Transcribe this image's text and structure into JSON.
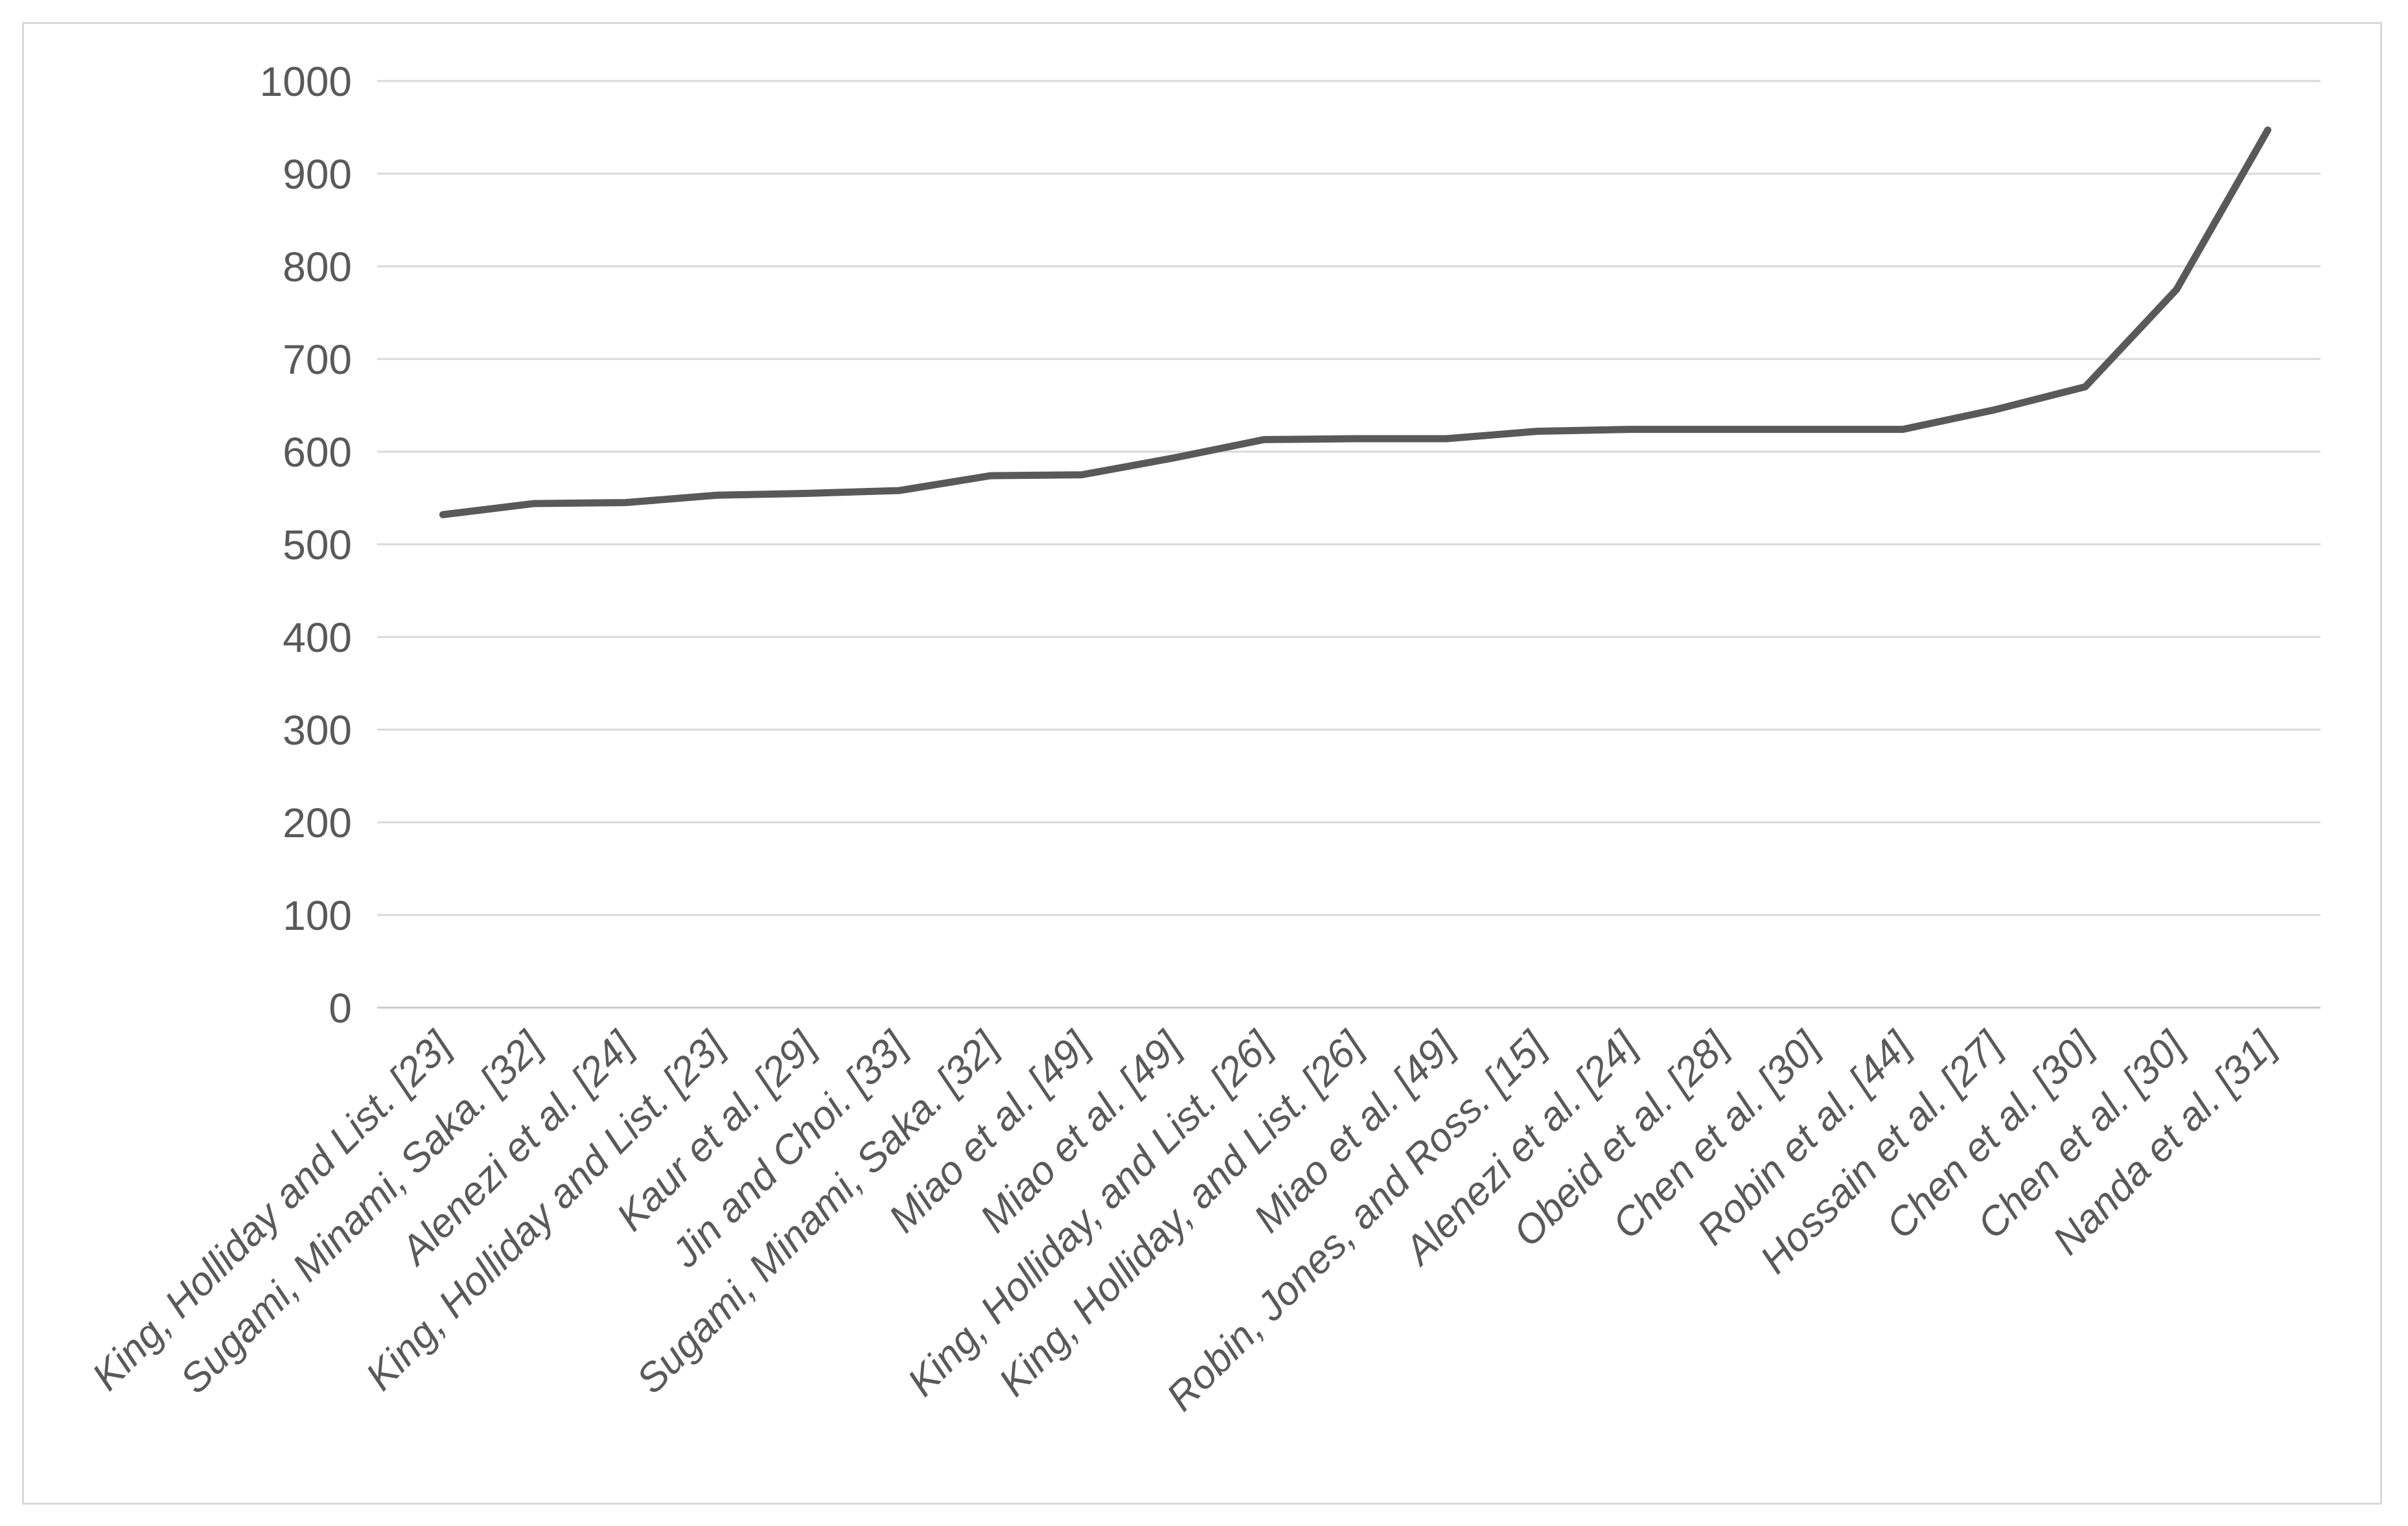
{
  "window": {
    "background": "#ffffff",
    "frame_border_color": "#d9d9d9"
  },
  "chart_data": {
    "type": "line",
    "title": "",
    "xlabel": "",
    "ylabel": "",
    "categories": [
      "King, Holliday and List. [23]",
      "Sugami, Minami, Saka. [32]",
      "Alenezi et al. [24]",
      "King, Holliday and List. [23]",
      "Kaur et al. [29]",
      "Jin and Choi. [33]",
      "Sugami, Minami, Saka. [32]",
      "Miao et al. [49]",
      "Miao et al. [49]",
      "King, Holliday, and List. [26]",
      "King, Holliday, and List. [26]",
      "Miao et al. [49]",
      "Robin, Jones, and Ross. [15]",
      "Alenezi et al. [24]",
      "Obeid et al. [28]",
      "Chen et al. [30]",
      "Robin et al. [44]",
      "Hossain et al. [27]",
      "Chen et al. [30]",
      "Chen et al. [30]",
      "Nanda et al. [31]"
    ],
    "series": [
      {
        "name": "",
        "values": [
          532,
          544,
          545,
          553,
          555,
          558,
          574,
          575,
          593,
          613,
          614,
          614,
          622,
          624,
          624,
          624,
          624,
          645,
          670,
          775,
          947
        ]
      }
    ],
    "ylim": [
      0,
      1000
    ],
    "yticks": [
      0,
      100,
      200,
      300,
      400,
      500,
      600,
      700,
      800,
      900,
      1000
    ],
    "grid": "horizontal",
    "legend": "none",
    "x_label_rotation_deg": 45,
    "colors": {
      "line": "#595959",
      "gridline": "#d9d9d9",
      "axis_line": "#c9c9c9",
      "tick_label": "#595959"
    }
  }
}
